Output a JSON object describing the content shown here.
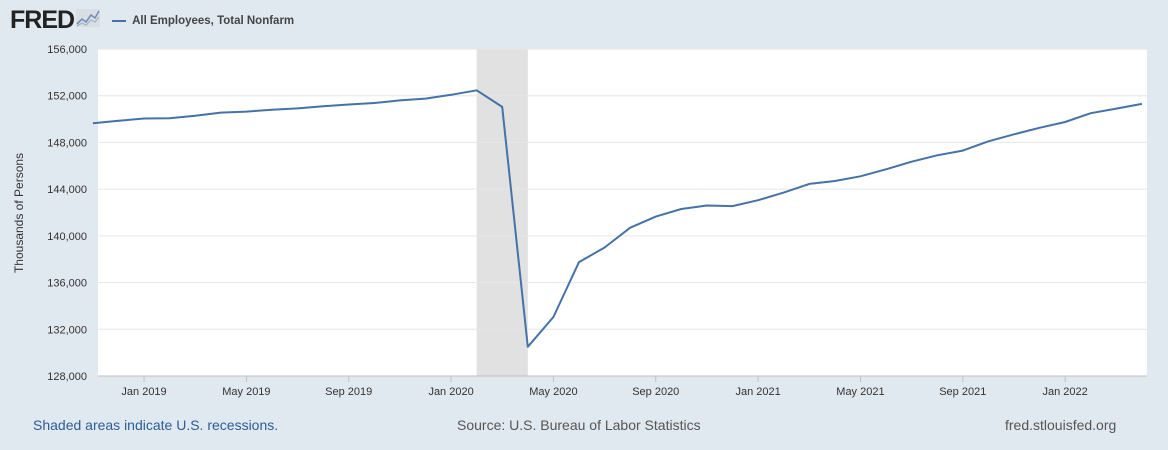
{
  "header": {
    "logo_text": "FRED",
    "legend_label": "All Employees, Total Nonfarm"
  },
  "footer": {
    "recession_note": "Shaded areas indicate U.S. recessions.",
    "source": "Source: U.S. Bureau of Labor Statistics",
    "site": "fred.stlouisfed.org"
  },
  "chart_data": {
    "type": "line",
    "title": "All Employees, Total Nonfarm",
    "xlabel": "",
    "ylabel": "Thousands of Persons",
    "ylim": [
      128000,
      156000
    ],
    "yticks": [
      128000,
      132000,
      136000,
      140000,
      144000,
      148000,
      152000,
      156000
    ],
    "ytick_labels": [
      "128,000",
      "132,000",
      "136,000",
      "140,000",
      "144,000",
      "148,000",
      "152,000",
      "156,000"
    ],
    "xrange": [
      "2018-11",
      "2022-04"
    ],
    "xticks": [
      {
        "month": "2019-01",
        "label": "Jan 2019"
      },
      {
        "month": "2019-05",
        "label": "May 2019"
      },
      {
        "month": "2019-09",
        "label": "Sep 2019"
      },
      {
        "month": "2020-01",
        "label": "Jan 2020"
      },
      {
        "month": "2020-05",
        "label": "May 2020"
      },
      {
        "month": "2020-09",
        "label": "Sep 2020"
      },
      {
        "month": "2021-01",
        "label": "Jan 2021"
      },
      {
        "month": "2021-05",
        "label": "May 2021"
      },
      {
        "month": "2021-09",
        "label": "Sep 2021"
      },
      {
        "month": "2022-01",
        "label": "Jan 2022"
      }
    ],
    "recession": {
      "start": "2020-02",
      "end": "2020-04"
    },
    "grid": true,
    "series": [
      {
        "name": "All Employees, Total Nonfarm",
        "color": "#4572a7",
        "x": [
          "2018-11",
          "2018-12",
          "2019-01",
          "2019-02",
          "2019-03",
          "2019-04",
          "2019-05",
          "2019-06",
          "2019-07",
          "2019-08",
          "2019-09",
          "2019-10",
          "2019-11",
          "2019-12",
          "2020-01",
          "2020-02",
          "2020-03",
          "2020-04",
          "2020-05",
          "2020-06",
          "2020-07",
          "2020-08",
          "2020-09",
          "2020-10",
          "2020-11",
          "2020-12",
          "2021-01",
          "2021-02",
          "2021-03",
          "2021-04",
          "2021-05",
          "2021-06",
          "2021-07",
          "2021-08",
          "2021-09",
          "2021-10",
          "2021-11",
          "2021-12",
          "2022-01",
          "2022-02",
          "2022-03",
          "2022-04"
        ],
        "values": [
          149650,
          149850,
          150050,
          150070,
          150280,
          150550,
          150640,
          150800,
          150910,
          151100,
          151250,
          151380,
          151600,
          151750,
          152080,
          152460,
          151040,
          130500,
          133050,
          137750,
          139000,
          140700,
          141650,
          142300,
          142600,
          142550,
          143050,
          143700,
          144450,
          144700,
          145100,
          145700,
          146350,
          146900,
          147300,
          148100,
          148700,
          149250,
          149750,
          150500,
          150900,
          151300
        ]
      }
    ]
  }
}
